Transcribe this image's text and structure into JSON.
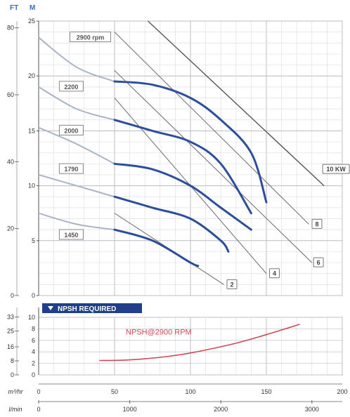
{
  "chart_data": [
    {
      "type": "line",
      "x_unit": "m³/hr",
      "xlim": [
        0,
        200
      ],
      "y_left_unit": "FT",
      "y_left_ticks": [
        0,
        20,
        40,
        60,
        80
      ],
      "y_right_unit": "M",
      "y_right_ticks": [
        0,
        5,
        10,
        15,
        20,
        25
      ],
      "ylim": [
        0,
        25
      ],
      "grid": true,
      "series": [
        {
          "name": "2900 rpm",
          "x": [
            0,
            25,
            50,
            75,
            100,
            120,
            140,
            150
          ],
          "y": [
            23.5,
            20.8,
            19.5,
            19.2,
            18.0,
            16.0,
            13.0,
            8.5
          ],
          "label_x": 22,
          "label_y": 23.5
        },
        {
          "name": "2200",
          "x": [
            0,
            25,
            50,
            75,
            100,
            120,
            140
          ],
          "y": [
            19.0,
            17.0,
            16.0,
            15.0,
            14.0,
            12.0,
            7.5
          ],
          "label_x": 15,
          "label_y": 19.0
        },
        {
          "name": "2000",
          "x": [
            0,
            25,
            50,
            75,
            100,
            120,
            140
          ],
          "y": [
            15.3,
            13.8,
            12.0,
            11.5,
            10.0,
            8.0,
            6.0
          ],
          "label_x": 15,
          "label_y": 15.0
        },
        {
          "name": "1790",
          "x": [
            0,
            25,
            50,
            75,
            100,
            120,
            125
          ],
          "y": [
            11.0,
            10.0,
            9.0,
            8.0,
            7.0,
            5.0,
            4.0
          ],
          "label_x": 15,
          "label_y": 11.5
        },
        {
          "name": "1450",
          "x": [
            0,
            25,
            50,
            75,
            100,
            105
          ],
          "y": [
            7.5,
            6.5,
            6.0,
            5.0,
            3.0,
            2.7
          ],
          "label_x": 15,
          "label_y": 5.5
        }
      ],
      "power_lines": [
        {
          "label": "2",
          "x": [
            50,
            122
          ],
          "y": [
            7.5,
            1.0
          ],
          "label_x": 125,
          "label_y": 1.0
        },
        {
          "label": "4",
          "x": [
            50,
            150
          ],
          "y": [
            18.0,
            2.0
          ],
          "label_x": 153,
          "label_y": 2.0
        },
        {
          "label": "6",
          "x": [
            50,
            180
          ],
          "y": [
            20.5,
            3.0
          ],
          "label_x": 182,
          "label_y": 3.0
        },
        {
          "label": "8",
          "x": [
            50,
            178
          ],
          "y": [
            24.0,
            6.5
          ],
          "label_x": 181,
          "label_y": 6.5
        },
        {
          "label": "10 KW",
          "x": [
            72,
            188
          ],
          "y": [
            25.0,
            10.0
          ],
          "label_x": 188,
          "label_y": 11.5
        }
      ]
    },
    {
      "type": "line",
      "title": "NPSH REQUIRED",
      "x_unit": "m³/hr",
      "xlim": [
        0,
        200
      ],
      "x_ticks": [
        0,
        50,
        100,
        150,
        200
      ],
      "x2_unit": "l/min",
      "x2_ticks": [
        0,
        1000,
        2000,
        3000
      ],
      "y_left_unit": "",
      "y_left_ticks": [
        0,
        8,
        16,
        25,
        33
      ],
      "y_right_ticks": [
        0,
        2,
        4,
        6,
        8,
        10
      ],
      "ylim": [
        0,
        10
      ],
      "grid": true,
      "series": [
        {
          "name": "NPSH@2900 RPM",
          "x": [
            40,
            55,
            70,
            85,
            100,
            115,
            130,
            145,
            160,
            172
          ],
          "y": [
            2.5,
            2.55,
            2.8,
            3.2,
            3.8,
            4.6,
            5.5,
            6.6,
            7.8,
            8.8
          ],
          "label_x": 50,
          "label_y": 7.5
        }
      ]
    }
  ]
}
